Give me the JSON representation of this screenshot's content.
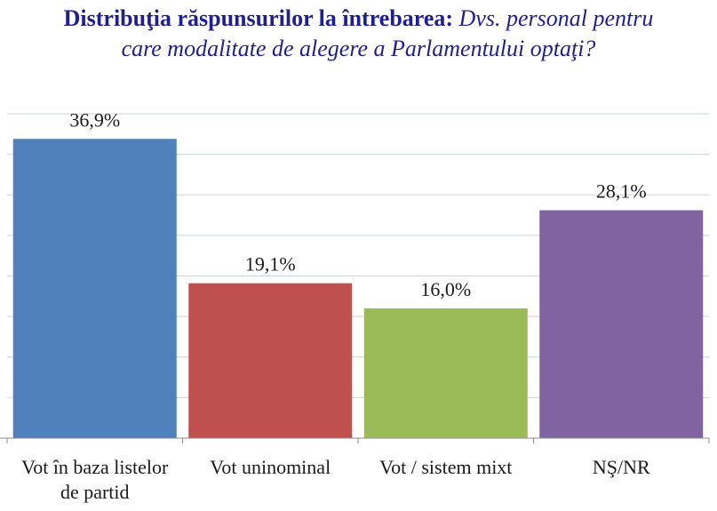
{
  "title": {
    "bold": "Distribuţia răspunsurilor la întrebarea:",
    "italic_line1": "Dvs. personal pentru",
    "italic_line2": "care modalitate de alegere a Parlamentului optaţi?"
  },
  "chart_data": {
    "type": "bar",
    "title": "Distribuţia răspunsurilor la întrebarea: Dvs. personal pentru care modalitate de alegere a Parlamentului optaţi?",
    "categories": [
      "Vot în baza listelor de partid",
      "Vot uninominal",
      "Vot / sistem mixt",
      "NŞ/NR"
    ],
    "category_lines": [
      [
        "Vot în baza listelor",
        "de partid"
      ],
      [
        "Vot uninominal"
      ],
      [
        "Vot / sistem mixt"
      ],
      [
        "NŞ/NR"
      ]
    ],
    "values": [
      36.9,
      19.1,
      16.0,
      28.1
    ],
    "data_labels": [
      "36,9%",
      "19,1%",
      "16,0%",
      "28,1%"
    ],
    "colors": [
      "#4f81bd",
      "#c0504d",
      "#9bbb59",
      "#8064a2"
    ],
    "ylim": [
      0,
      40
    ],
    "grid": true,
    "grid_step": 5,
    "xlabel": "",
    "ylabel": ""
  }
}
